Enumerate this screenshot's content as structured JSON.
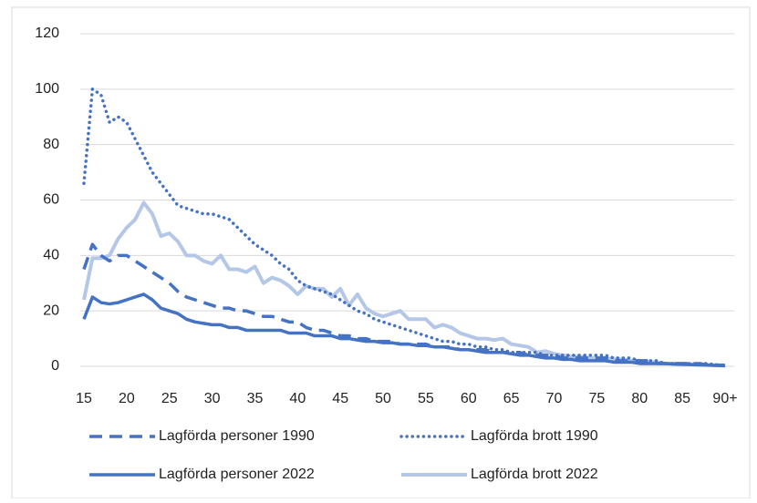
{
  "chart_data": {
    "type": "line",
    "categories": [
      "15",
      null,
      null,
      null,
      null,
      "20",
      null,
      null,
      null,
      null,
      "25",
      null,
      null,
      null,
      null,
      "30",
      null,
      null,
      null,
      null,
      "35",
      null,
      null,
      null,
      null,
      "40",
      null,
      null,
      null,
      null,
      "45",
      null,
      null,
      null,
      null,
      "50",
      null,
      null,
      null,
      null,
      "55",
      null,
      null,
      null,
      null,
      "60",
      null,
      null,
      null,
      null,
      "65",
      null,
      null,
      null,
      null,
      "70",
      null,
      null,
      null,
      null,
      "75",
      null,
      null,
      null,
      null,
      "80",
      null,
      null,
      null,
      null,
      "85",
      null,
      null,
      null,
      null,
      "90+"
    ],
    "series": [
      {
        "name": "Lagförda personer 1990",
        "color": "#4472c4",
        "dash": "dashed",
        "values": [
          35,
          44,
          40,
          38,
          40,
          40,
          38,
          36,
          34,
          32,
          30,
          27,
          25,
          24,
          23,
          22,
          21,
          21,
          20,
          20,
          19,
          18,
          18,
          17,
          16,
          16,
          14,
          13,
          13,
          12,
          11,
          11,
          10,
          10,
          9,
          9,
          9,
          8,
          8,
          8,
          8,
          7,
          7,
          7,
          6,
          6,
          6,
          6,
          5,
          5,
          5,
          5,
          4,
          4,
          4,
          4,
          3,
          3,
          3,
          3,
          3,
          3,
          2,
          2,
          2,
          2,
          2,
          1,
          1,
          1,
          1,
          1,
          1,
          0.5,
          0.5,
          0.3
        ]
      },
      {
        "name": "Lagförda brott 1990",
        "color": "#4472c4",
        "dash": "dotted",
        "values": [
          66,
          100,
          98,
          88,
          90,
          88,
          82,
          76,
          70,
          66,
          62,
          58,
          57,
          56,
          55,
          55,
          54,
          53,
          50,
          47,
          44,
          42,
          40,
          37,
          35,
          31,
          29,
          28,
          27,
          26,
          24,
          22,
          20,
          19,
          17,
          16,
          15,
          14,
          13,
          12,
          11,
          10,
          9,
          9,
          8,
          8,
          7,
          7,
          6,
          6,
          5,
          5,
          5,
          5,
          4,
          4,
          4,
          4,
          4,
          4,
          4,
          4,
          3,
          3,
          3,
          2,
          2,
          2,
          1,
          1,
          1,
          1,
          1,
          1,
          0.5,
          0.5
        ]
      },
      {
        "name": "Lagförda personer 2022",
        "color": "#4472c4",
        "dash": "solid",
        "values": [
          17,
          25,
          23,
          22.5,
          23,
          24,
          25,
          26,
          24,
          21,
          20,
          19,
          17,
          16,
          15.5,
          15,
          15,
          14,
          14,
          13,
          13,
          13,
          13,
          13,
          12,
          12,
          12,
          11,
          11,
          11,
          10,
          10,
          9.5,
          9,
          9,
          8.5,
          8.5,
          8,
          8,
          7.5,
          7.5,
          7,
          7,
          6.5,
          6,
          6,
          5.5,
          5,
          5,
          5,
          4.5,
          4,
          4,
          3.5,
          3,
          3,
          2.5,
          2.5,
          2,
          2,
          2,
          2,
          1.5,
          1.5,
          1.5,
          1,
          1,
          1,
          1,
          0.8,
          0.7,
          0.6,
          0.5,
          0.4,
          0.3,
          0.2
        ]
      },
      {
        "name": "Lagförda brott 2022",
        "color": "#b4c7e7",
        "dash": "solid",
        "values": [
          24,
          39,
          39,
          40,
          46,
          50,
          53,
          59,
          55,
          47,
          48,
          45,
          40,
          40,
          38,
          37,
          40,
          35,
          35,
          34,
          36,
          30,
          32,
          31,
          29,
          26,
          29,
          28,
          28,
          25,
          28,
          22,
          26,
          21,
          19,
          18,
          19,
          20,
          17,
          17,
          17,
          14,
          15,
          14,
          12,
          11,
          10,
          10,
          9.5,
          10,
          8,
          7.5,
          7,
          5,
          5.5,
          4.5,
          4,
          3.5,
          3.5,
          3,
          3,
          3,
          2.5,
          2.5,
          2,
          2,
          1.5,
          1.5,
          1,
          1,
          1,
          0.8,
          0.6,
          0.5,
          0.4,
          0.3
        ]
      }
    ],
    "ylim": [
      0,
      120
    ],
    "yticks": [
      0,
      20,
      40,
      60,
      80,
      100,
      120
    ],
    "grid": true,
    "legend": "bottom"
  }
}
